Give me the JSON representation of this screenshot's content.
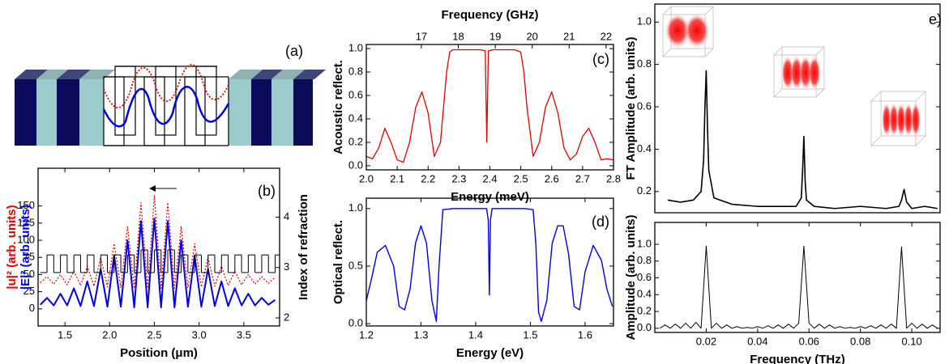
{
  "schematic": {
    "label": "(a)"
  },
  "chart_data": [
    {
      "type": "line",
      "panel_label": "(b)",
      "xlabel": "Position (μm)",
      "ylabels": [
        "|u|² (arb. units)",
        "|E|² (arb. units)"
      ],
      "ylabel_colors": [
        "#e00000",
        "#0000dd"
      ],
      "y2label": "Index of refraction",
      "x": [
        1.225,
        1.3,
        1.375,
        1.45,
        1.525,
        1.6,
        1.675,
        1.75,
        1.825,
        1.9,
        1.975,
        2.05,
        2.125,
        2.2,
        2.275,
        2.35,
        2.425,
        2.5,
        2.575,
        2.65,
        2.725,
        2.8,
        2.875,
        2.95,
        3.025,
        3.1,
        3.175,
        3.25,
        3.325,
        3.4,
        3.475,
        3.55,
        3.625,
        3.7,
        3.775,
        3.85
      ],
      "xlim": [
        1.2,
        3.9
      ],
      "xticks": [
        1.5,
        {
          "value": 2,
          "label": "2.0"
        },
        2.5,
        {
          "value": 3,
          "label": "3.0"
        },
        3.5
      ],
      "ylim": [
        -25,
        205
      ],
      "yticks": [
        0,
        25,
        50,
        75,
        100,
        125,
        150
      ],
      "y2lim": [
        1.84,
        4.97
      ],
      "y2ticks": [
        2,
        3,
        4
      ],
      "series": [
        {
          "color": "#e00000",
          "dash": "dotted",
          "values": [
            38,
            47,
            36,
            50,
            35,
            55,
            34,
            62,
            33,
            75,
            32,
            95,
            31,
            120,
            30,
            155,
            30,
            165,
            30,
            155,
            30,
            120,
            31,
            95,
            32,
            75,
            33,
            62,
            34,
            55,
            35,
            50,
            36,
            47,
            37,
            46
          ]
        },
        {
          "color": "#0000dd",
          "values": [
            6,
            16,
            5,
            22,
            5,
            30,
            4,
            40,
            4,
            58,
            3,
            78,
            3,
            100,
            2,
            128,
            2,
            132,
            2,
            128,
            2,
            100,
            3,
            78,
            3,
            58,
            4,
            40,
            4,
            30,
            5,
            22,
            5,
            16,
            6,
            13
          ]
        },
        {
          "color": "#000000",
          "axis": "y2",
          "step": true,
          "values": [
            2.9,
            3.25,
            2.9,
            3.25,
            2.9,
            3.25,
            2.9,
            3.25,
            2.9,
            3.25,
            2.9,
            3.25,
            2.9,
            3.25,
            2.9,
            3.35,
            2.9,
            3.35,
            2.9,
            3.35,
            2.9,
            3.25,
            2.9,
            3.25,
            2.9,
            3.25,
            2.9,
            3.25,
            2.9,
            3.25,
            2.9,
            3.25,
            2.9,
            3.25,
            2.9,
            3.25
          ]
        }
      ]
    },
    {
      "type": "line",
      "panel_label": "(c)",
      "xlabel": "Energy (meV)",
      "ylabel": "Acoustic reflect.",
      "x2label": "Frequency (GHz)",
      "x2lim": [
        15.51,
        22.2
      ],
      "x2ticks": [
        17,
        18,
        19,
        20,
        21,
        22
      ],
      "x": [
        2.0,
        2.02,
        2.04,
        2.06,
        2.08,
        2.1,
        2.12,
        2.14,
        2.16,
        2.18,
        2.2,
        2.22,
        2.24,
        2.26,
        2.27,
        2.28,
        2.3,
        2.34,
        2.37,
        2.385,
        2.39,
        2.395,
        2.41,
        2.44,
        2.48,
        2.5,
        2.51,
        2.52,
        2.54,
        2.56,
        2.58,
        2.6,
        2.62,
        2.64,
        2.66,
        2.68,
        2.7,
        2.72,
        2.74,
        2.76,
        2.78,
        2.8
      ],
      "xlim": [
        2.0,
        2.8
      ],
      "xticks": [
        {
          "value": 2,
          "label": "2.0"
        },
        2.1,
        2.2,
        2.3,
        2.4,
        2.5,
        2.6,
        2.7,
        2.8
      ],
      "ylim": [
        -0.035,
        1.035
      ],
      "yticks": [
        {
          "value": 0,
          "label": "0.0"
        },
        0.2,
        0.4,
        0.6,
        0.8,
        {
          "value": 1,
          "label": "1.0"
        }
      ],
      "series": [
        {
          "color": "#e00000",
          "values": [
            0.08,
            0.06,
            0.15,
            0.32,
            0.2,
            0.05,
            0.03,
            0.2,
            0.5,
            0.63,
            0.45,
            0.08,
            0.2,
            0.8,
            0.97,
            0.99,
            0.99,
            0.99,
            0.99,
            0.98,
            0.2,
            0.98,
            0.99,
            0.99,
            0.99,
            0.97,
            0.8,
            0.5,
            0.08,
            0.2,
            0.5,
            0.63,
            0.45,
            0.15,
            0.05,
            0.1,
            0.25,
            0.32,
            0.2,
            0.05,
            0.06,
            0.05
          ]
        }
      ]
    },
    {
      "type": "line",
      "panel_label": "(d)",
      "xlabel": "Energy (eV)",
      "ylabel": "Optical reflect.",
      "x": [
        1.2,
        1.21,
        1.22,
        1.235,
        1.25,
        1.26,
        1.27,
        1.28,
        1.29,
        1.3,
        1.31,
        1.32,
        1.328,
        1.333,
        1.34,
        1.36,
        1.4,
        1.42,
        1.423,
        1.425,
        1.427,
        1.43,
        1.45,
        1.49,
        1.505,
        1.51,
        1.515,
        1.52,
        1.53,
        1.54,
        1.55,
        1.56,
        1.57,
        1.58,
        1.59,
        1.6,
        1.615,
        1.63,
        1.64,
        1.65
      ],
      "xlim": [
        1.2,
        1.652
      ],
      "xticks": [
        1.2,
        1.3,
        1.4,
        1.5,
        1.6
      ],
      "ylim": [
        -0.02,
        1.09
      ],
      "yticks": [
        {
          "value": 0,
          "label": "0.0"
        },
        0.5,
        {
          "value": 1,
          "label": "1.0"
        }
      ],
      "series": [
        {
          "color": "#0000dd",
          "values": [
            0.2,
            0.4,
            0.62,
            0.68,
            0.5,
            0.15,
            0.12,
            0.3,
            0.7,
            0.85,
            0.7,
            0.2,
            0.02,
            0.5,
            0.99,
            1.0,
            1.0,
            1.0,
            0.9,
            0.25,
            0.9,
            1.0,
            1.0,
            1.0,
            0.99,
            0.7,
            0.1,
            0.02,
            0.2,
            0.7,
            0.85,
            0.85,
            0.6,
            0.15,
            0.12,
            0.45,
            0.68,
            0.55,
            0.3,
            0.15
          ]
        }
      ]
    },
    {
      "type": "line",
      "panel_label": "e)",
      "ylabel": "FT Amplitude (arb. units)",
      "x": [
        0.005,
        0.01,
        0.015,
        0.018,
        0.019,
        0.0195,
        0.02,
        0.0205,
        0.021,
        0.023,
        0.03,
        0.04,
        0.05,
        0.055,
        0.057,
        0.0575,
        0.058,
        0.0585,
        0.059,
        0.062,
        0.07,
        0.08,
        0.09,
        0.095,
        0.096,
        0.097,
        0.098,
        0.1,
        0.105,
        0.11
      ],
      "xlim": [
        0,
        0.111
      ],
      "ylim": [
        0.1,
        1.085
      ],
      "yticks": [
        0.2,
        0.4,
        0.6,
        0.8,
        {
          "value": 1,
          "label": "1.0"
        }
      ],
      "series": [
        {
          "color": "#000000",
          "values": [
            0.16,
            0.15,
            0.16,
            0.2,
            0.35,
            0.6,
            0.77,
            0.5,
            0.3,
            0.17,
            0.14,
            0.13,
            0.13,
            0.13,
            0.17,
            0.3,
            0.46,
            0.25,
            0.16,
            0.13,
            0.12,
            0.13,
            0.12,
            0.13,
            0.16,
            0.21,
            0.15,
            0.12,
            0.13,
            0.12
          ]
        }
      ]
    },
    {
      "type": "line",
      "xlabel": "Frequency (THz)",
      "ylabel": "Amplitude (arb. units)",
      "x": [
        0.002,
        0.004,
        0.006,
        0.008,
        0.01,
        0.012,
        0.014,
        0.016,
        0.018,
        0.02,
        0.022,
        0.024,
        0.026,
        0.028,
        0.03,
        0.032,
        0.034,
        0.036,
        0.038,
        0.04,
        0.042,
        0.044,
        0.046,
        0.048,
        0.05,
        0.052,
        0.054,
        0.056,
        0.058,
        0.06,
        0.062,
        0.064,
        0.066,
        0.068,
        0.07,
        0.072,
        0.074,
        0.076,
        0.078,
        0.08,
        0.082,
        0.084,
        0.086,
        0.088,
        0.09,
        0.092,
        0.094,
        0.096,
        0.098,
        0.1,
        0.102,
        0.104,
        0.106,
        0.108,
        0.11
      ],
      "xlim": [
        0,
        0.111
      ],
      "xticks": [
        0.02,
        0.04,
        0.06,
        0.08,
        {
          "value": 0.1,
          "label": "0.10"
        }
      ],
      "ylim": [
        -0.05,
        1.26
      ],
      "yticks": [
        {
          "value": 0,
          "label": "0.0"
        },
        0.2,
        0.4,
        0.6,
        0.8,
        {
          "value": 1,
          "label": "1.0"
        }
      ],
      "series": [
        {
          "color": "#000000",
          "values": [
            0,
            0.04,
            0,
            0.05,
            0,
            0.06,
            0,
            0.07,
            0,
            0.98,
            0,
            0.06,
            0,
            0.04,
            0,
            0.02,
            0,
            0.01,
            0,
            0.02,
            0,
            0.03,
            0,
            0.04,
            0,
            0.05,
            0,
            0.06,
            0.98,
            0.06,
            0,
            0.05,
            0,
            0.04,
            0,
            0.02,
            0,
            0.01,
            0,
            0.02,
            0,
            0.03,
            0,
            0.04,
            0,
            0.05,
            0,
            0.97,
            0,
            0.06,
            0,
            0.05,
            0,
            0.04,
            0
          ]
        }
      ]
    }
  ]
}
